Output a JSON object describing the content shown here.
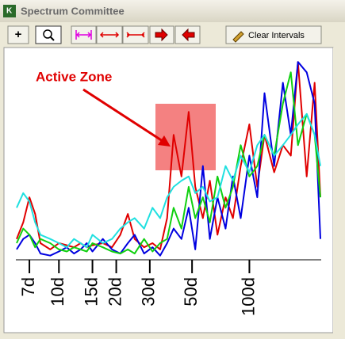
{
  "window": {
    "title": "Spectrum Committee"
  },
  "toolbar": {
    "clear_button": "Clear Intervals"
  },
  "chart_data": {
    "type": "line",
    "annotation": "Active Zone",
    "x": [
      6,
      6.5,
      7,
      7.5,
      8,
      9,
      10,
      11,
      12,
      13,
      14,
      15,
      17,
      19,
      21,
      23,
      25,
      28,
      31,
      34,
      37,
      40,
      44,
      48,
      52,
      57,
      62,
      68,
      75,
      82,
      90,
      100,
      110,
      120,
      135,
      150,
      165,
      180,
      200,
      220,
      236
    ],
    "series": [
      {
        "color": "#e00000",
        "values": [
          10,
          18,
          30,
          22,
          8,
          5,
          8,
          7,
          6,
          8,
          6,
          7,
          8,
          6,
          12,
          22,
          10,
          6,
          8,
          5,
          20,
          60,
          40,
          71,
          35,
          20,
          38,
          12,
          30,
          20,
          45,
          65,
          35,
          60,
          42,
          55,
          50,
          95,
          40,
          85,
          30
        ]
      },
      {
        "color": "#0000e0",
        "values": [
          5,
          10,
          12,
          8,
          3,
          2,
          4,
          6,
          3,
          5,
          8,
          4,
          10,
          5,
          3,
          8,
          12,
          3,
          6,
          2,
          8,
          15,
          10,
          25,
          5,
          45,
          10,
          30,
          15,
          40,
          20,
          50,
          30,
          80,
          45,
          85,
          60,
          95,
          90,
          75,
          10
        ]
      },
      {
        "color": "#10d010",
        "values": [
          8,
          15,
          12,
          6,
          10,
          8,
          5,
          4,
          6,
          5,
          4,
          8,
          6,
          4,
          3,
          5,
          3,
          10,
          4,
          8,
          10,
          25,
          15,
          35,
          20,
          30,
          18,
          40,
          25,
          35,
          55,
          40,
          45,
          60,
          50,
          75,
          90,
          55,
          70,
          60,
          30
        ]
      },
      {
        "color": "#20e0e0",
        "values": [
          25,
          32,
          28,
          18,
          12,
          10,
          8,
          6,
          10,
          8,
          6,
          12,
          8,
          10,
          15,
          18,
          20,
          15,
          25,
          20,
          30,
          35,
          38,
          40,
          32,
          35,
          28,
          30,
          45,
          38,
          50,
          42,
          55,
          60,
          50,
          55,
          60,
          65,
          70,
          60,
          45
        ]
      }
    ],
    "xscale": "log",
    "xlim": [
      6,
      236
    ],
    "ylim": [
      0,
      100
    ],
    "xticks": [
      {
        "value": 7,
        "label": "7d"
      },
      {
        "value": 10,
        "label": "10d"
      },
      {
        "value": 15,
        "label": "15d"
      },
      {
        "value": 20,
        "label": "20d"
      },
      {
        "value": 30,
        "label": "30d"
      },
      {
        "value": 50,
        "label": "50d"
      },
      {
        "value": 100,
        "label": "100d"
      }
    ]
  }
}
